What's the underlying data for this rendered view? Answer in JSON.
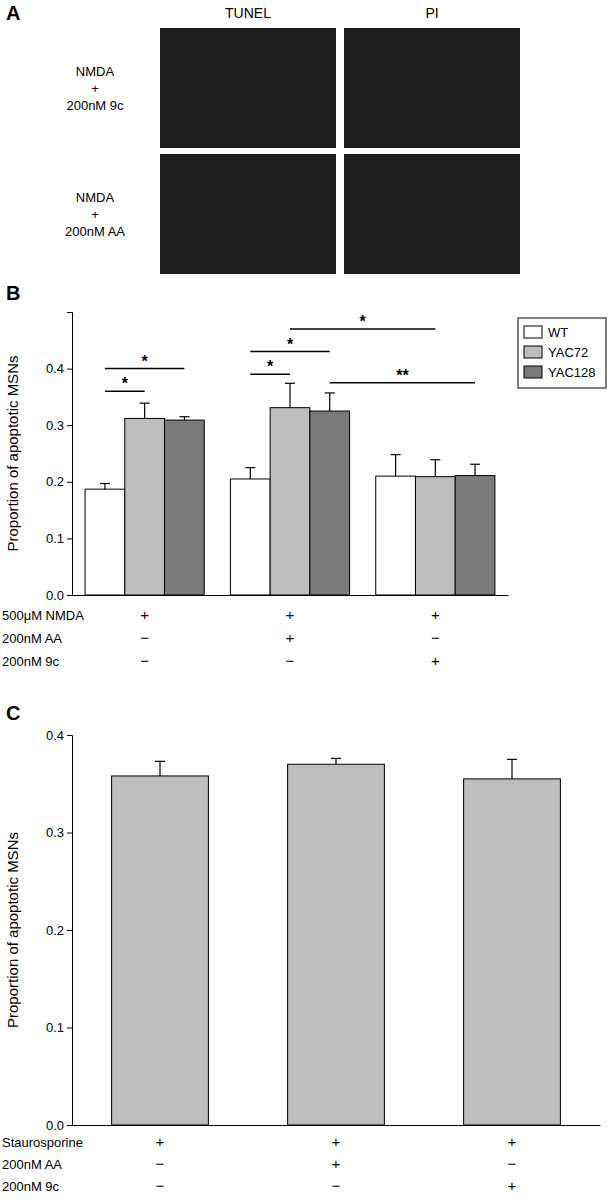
{
  "panel_a": {
    "panel_label": "A",
    "columns": [
      "TUNEL",
      "PI"
    ],
    "rows": [
      [
        "NMDA",
        "+",
        "200nM 9c"
      ],
      [
        "NMDA",
        "+",
        "200nM AA"
      ]
    ]
  },
  "chart_data": [
    {
      "type": "bar",
      "panel_label": "B",
      "y_label": "Proportion of apoptotic MSNs",
      "categories": [
        null,
        null,
        null
      ],
      "conditions": [
        {
          "label": "500μM NMDA",
          "marks": [
            "+",
            "+",
            "+"
          ]
        },
        {
          "label": "200nM AA",
          "marks": [
            "−",
            "+",
            "−"
          ]
        },
        {
          "label": "200nM 9c",
          "marks": [
            "−",
            "−",
            "+"
          ]
        }
      ],
      "series": [
        {
          "name": "WT",
          "color": "#ffffff",
          "values": [
            0.187,
            0.205,
            0.21
          ],
          "errors": [
            0.01,
            0.02,
            0.038
          ]
        },
        {
          "name": "YAC72",
          "color": "#bdbdbd",
          "values": [
            0.312,
            0.331,
            0.209
          ],
          "errors": [
            0.027,
            0.043,
            0.03
          ]
        },
        {
          "name": "YAC128",
          "color": "#7a7a7a",
          "values": [
            0.309,
            0.325,
            0.211
          ],
          "errors": [
            0.006,
            0.032,
            0.02
          ]
        }
      ],
      "ylim": [
        0,
        0.5
      ],
      "yticks": [
        {
          "value": 0,
          "label": "0.0"
        },
        0.1,
        0.2,
        0.3,
        0.4
      ],
      "legend": "right",
      "annotations": [
        {
          "label": "*",
          "from": [
            0,
            0
          ],
          "to": [
            0,
            1
          ],
          "y": 0.36
        },
        {
          "label": "*",
          "from": [
            0,
            0
          ],
          "to": [
            0,
            2
          ],
          "y": 0.4
        },
        {
          "label": "*",
          "from": [
            1,
            0
          ],
          "to": [
            1,
            1
          ],
          "y": 0.39
        },
        {
          "label": "*",
          "from": [
            1,
            0
          ],
          "to": [
            1,
            2
          ],
          "y": 0.43
        },
        {
          "label": "*",
          "from": [
            1,
            1
          ],
          "to": [
            2,
            1
          ],
          "y": 0.47
        },
        {
          "label": "**",
          "from": [
            1,
            2
          ],
          "to": [
            2,
            2
          ],
          "y": 0.375
        }
      ]
    },
    {
      "type": "bar",
      "panel_label": "C",
      "y_label": "Proportion of apoptotic MSNs",
      "categories": [
        null,
        null,
        null
      ],
      "conditions": [
        {
          "label": "Staurosporine",
          "marks": [
            "+",
            "+",
            "+"
          ]
        },
        {
          "label": "200nM AA",
          "marks": [
            "−",
            "+",
            "−"
          ]
        },
        {
          "label": "200nM 9c",
          "marks": [
            "−",
            "−",
            "+"
          ]
        }
      ],
      "series": [
        {
          "color": "#bdbdbd",
          "values": [
            0.358,
            0.37,
            0.355
          ],
          "errors": [
            0.015,
            0.006,
            0.02
          ]
        }
      ],
      "ylim": [
        0,
        0.4
      ],
      "yticks": [
        {
          "value": 0,
          "label": "0.0"
        },
        0.1,
        0.2,
        0.3,
        0.4
      ]
    }
  ]
}
